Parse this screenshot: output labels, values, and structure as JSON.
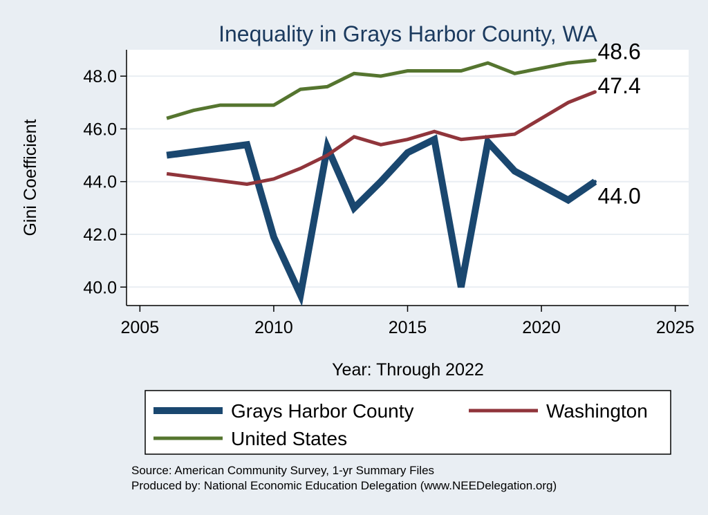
{
  "chart_data": {
    "type": "line",
    "title": "Inequality in Grays Harbor County, WA",
    "xlabel": "Year: Through 2022",
    "ylabel": "Gini Coefficient",
    "xlim": [
      2004.5,
      2025.5
    ],
    "ylim": [
      39.3,
      49.0
    ],
    "x_ticks": [
      2005,
      2010,
      2015,
      2020,
      2025
    ],
    "x_tick_labels": [
      "2005",
      "2010",
      "2015",
      "2020",
      "2025"
    ],
    "y_ticks": [
      40,
      42,
      44,
      46,
      48
    ],
    "y_tick_labels": [
      "40.0",
      "42.0",
      "44.0",
      "46.0",
      "48.0"
    ],
    "grid": true,
    "legend_position": "bottom",
    "series": [
      {
        "name": "Grays Harbor County",
        "color": "#1a476f",
        "weight": "thick",
        "x": [
          2006,
          2009,
          2010,
          2011,
          2012,
          2013,
          2014,
          2015,
          2016,
          2017,
          2018,
          2019,
          2021,
          2022
        ],
        "values": [
          45.0,
          45.4,
          41.9,
          39.7,
          45.3,
          43.0,
          44.0,
          45.1,
          45.6,
          40.0,
          45.5,
          44.4,
          43.3,
          44.0
        ],
        "end_label": "44.0"
      },
      {
        "name": "Washington",
        "color": "#90353b",
        "weight": "medium",
        "x": [
          2006,
          2009,
          2010,
          2011,
          2012,
          2013,
          2014,
          2015,
          2016,
          2017,
          2018,
          2019,
          2021,
          2022
        ],
        "values": [
          44.3,
          43.9,
          44.1,
          44.5,
          45.0,
          45.7,
          45.4,
          45.6,
          45.9,
          45.6,
          45.7,
          45.8,
          47.0,
          47.4
        ],
        "end_label": "47.4"
      },
      {
        "name": "United States",
        "color": "#55752f",
        "weight": "medium",
        "x": [
          2006,
          2007,
          2008,
          2009,
          2010,
          2011,
          2012,
          2013,
          2014,
          2015,
          2016,
          2017,
          2018,
          2019,
          2021,
          2022
        ],
        "values": [
          46.4,
          46.7,
          46.9,
          46.9,
          46.9,
          47.5,
          47.6,
          48.1,
          48.0,
          48.2,
          48.2,
          48.2,
          48.5,
          48.1,
          48.5,
          48.6
        ],
        "end_label": "48.6"
      }
    ],
    "legend": [
      {
        "label": "Grays Harbor County",
        "color": "#1a476f",
        "weight": "thick"
      },
      {
        "label": "Washington",
        "color": "#90353b",
        "weight": "medium"
      },
      {
        "label": "United States",
        "color": "#55752f",
        "weight": "medium"
      }
    ],
    "notes": [
      "Source: American Community Survey, 1-yr Summary Files",
      "Produced by: National Economic Education Delegation (www.NEEDelegation.org)"
    ]
  }
}
